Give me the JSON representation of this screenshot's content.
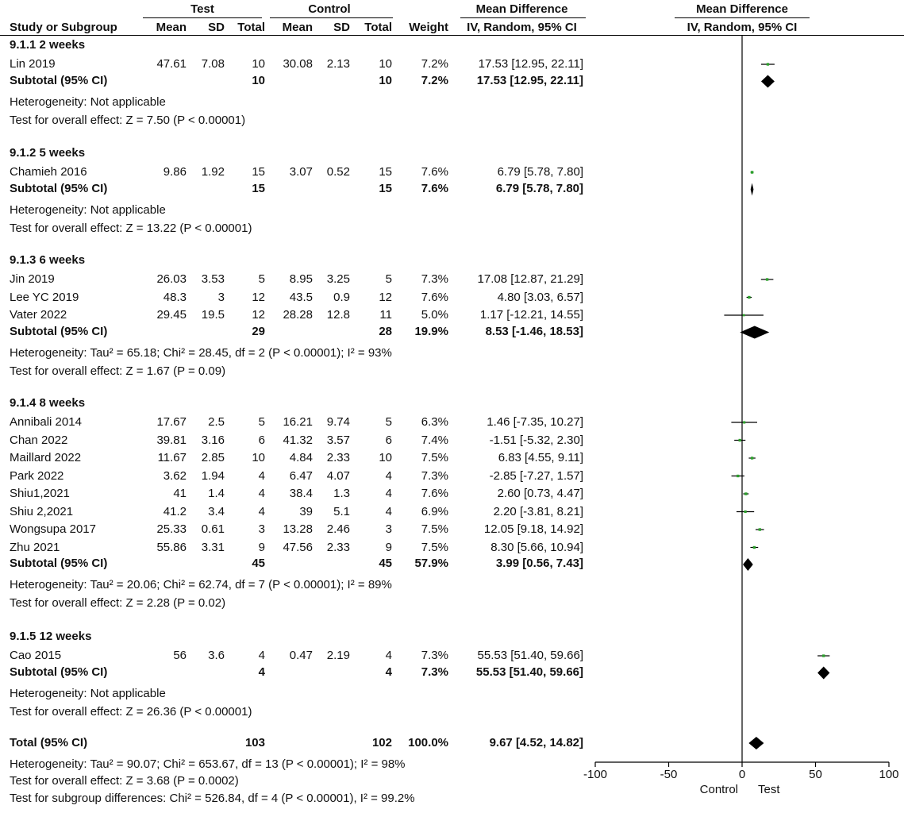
{
  "headers": {
    "test_group": "Test",
    "control_group": "Control",
    "md_left": "Mean Difference",
    "md_right": "Mean Difference",
    "study": "Study or Subgroup",
    "mean": "Mean",
    "sd": "SD",
    "total": "Total",
    "weight": "Weight",
    "method_left": "IV, Random, 95% CI",
    "method_right": "IV, Random, 95% CI"
  },
  "subgroups": [
    {
      "title": "9.1.1 2 weeks",
      "studies": [
        {
          "name": "Lin 2019",
          "t_mean": "47.61",
          "t_sd": "7.08",
          "t_n": "10",
          "c_mean": "30.08",
          "c_sd": "2.13",
          "c_n": "10",
          "weight": "7.2%",
          "ci": "17.53 [12.95, 22.11]"
        }
      ],
      "subtotal": {
        "label": "Subtotal (95% CI)",
        "t_n": "10",
        "c_n": "10",
        "weight": "7.2%",
        "ci": "17.53 [12.95, 22.11]"
      },
      "heterogeneity": "Heterogeneity: Not applicable",
      "overall": "Test for overall effect: Z = 7.50 (P < 0.00001)"
    },
    {
      "title": "9.1.2 5 weeks",
      "studies": [
        {
          "name": "Chamieh 2016",
          "t_mean": "9.86",
          "t_sd": "1.92",
          "t_n": "15",
          "c_mean": "3.07",
          "c_sd": "0.52",
          "c_n": "15",
          "weight": "7.6%",
          "ci": "6.79 [5.78, 7.80]"
        }
      ],
      "subtotal": {
        "label": "Subtotal (95% CI)",
        "t_n": "15",
        "c_n": "15",
        "weight": "7.6%",
        "ci": "6.79 [5.78, 7.80]"
      },
      "heterogeneity": "Heterogeneity: Not applicable",
      "overall": "Test for overall effect: Z = 13.22 (P < 0.00001)"
    },
    {
      "title": "9.1.3 6 weeks",
      "studies": [
        {
          "name": "Jin 2019",
          "t_mean": "26.03",
          "t_sd": "3.53",
          "t_n": "5",
          "c_mean": "8.95",
          "c_sd": "3.25",
          "c_n": "5",
          "weight": "7.3%",
          "ci": "17.08 [12.87, 21.29]"
        },
        {
          "name": "Lee YC 2019",
          "t_mean": "48.3",
          "t_sd": "3",
          "t_n": "12",
          "c_mean": "43.5",
          "c_sd": "0.9",
          "c_n": "12",
          "weight": "7.6%",
          "ci": "4.80 [3.03, 6.57]"
        },
        {
          "name": "Vater 2022",
          "t_mean": "29.45",
          "t_sd": "19.5",
          "t_n": "12",
          "c_mean": "28.28",
          "c_sd": "12.8",
          "c_n": "11",
          "weight": "5.0%",
          "ci": "1.17 [-12.21, 14.55]"
        }
      ],
      "subtotal": {
        "label": "Subtotal (95% CI)",
        "t_n": "29",
        "c_n": "28",
        "weight": "19.9%",
        "ci": "8.53 [-1.46, 18.53]"
      },
      "heterogeneity": "Heterogeneity: Tau² = 65.18; Chi² = 28.45, df = 2 (P < 0.00001); I² = 93%",
      "overall": "Test for overall effect: Z = 1.67 (P = 0.09)"
    },
    {
      "title": "9.1.4 8 weeks",
      "studies": [
        {
          "name": "Annibali 2014",
          "t_mean": "17.67",
          "t_sd": "2.5",
          "t_n": "5",
          "c_mean": "16.21",
          "c_sd": "9.74",
          "c_n": "5",
          "weight": "6.3%",
          "ci": "1.46 [-7.35, 10.27]"
        },
        {
          "name": "Chan 2022",
          "t_mean": "39.81",
          "t_sd": "3.16",
          "t_n": "6",
          "c_mean": "41.32",
          "c_sd": "3.57",
          "c_n": "6",
          "weight": "7.4%",
          "ci": "-1.51 [-5.32, 2.30]"
        },
        {
          "name": "Maillard 2022",
          "t_mean": "11.67",
          "t_sd": "2.85",
          "t_n": "10",
          "c_mean": "4.84",
          "c_sd": "2.33",
          "c_n": "10",
          "weight": "7.5%",
          "ci": "6.83 [4.55, 9.11]"
        },
        {
          "name": "Park 2022",
          "t_mean": "3.62",
          "t_sd": "1.94",
          "t_n": "4",
          "c_mean": "6.47",
          "c_sd": "4.07",
          "c_n": "4",
          "weight": "7.3%",
          "ci": "-2.85 [-7.27, 1.57]"
        },
        {
          "name": "Shiu1,2021",
          "t_mean": "41",
          "t_sd": "1.4",
          "t_n": "4",
          "c_mean": "38.4",
          "c_sd": "1.3",
          "c_n": "4",
          "weight": "7.6%",
          "ci": "2.60 [0.73, 4.47]"
        },
        {
          "name": "Shiu 2,2021",
          "t_mean": "41.2",
          "t_sd": "3.4",
          "t_n": "4",
          "c_mean": "39",
          "c_sd": "5.1",
          "c_n": "4",
          "weight": "6.9%",
          "ci": "2.20 [-3.81, 8.21]"
        },
        {
          "name": "Wongsupa 2017",
          "t_mean": "25.33",
          "t_sd": "0.61",
          "t_n": "3",
          "c_mean": "13.28",
          "c_sd": "2.46",
          "c_n": "3",
          "weight": "7.5%",
          "ci": "12.05 [9.18, 14.92]"
        },
        {
          "name": "Zhu 2021",
          "t_mean": "55.86",
          "t_sd": "3.31",
          "t_n": "9",
          "c_mean": "47.56",
          "c_sd": "2.33",
          "c_n": "9",
          "weight": "7.5%",
          "ci": "8.30 [5.66, 10.94]"
        }
      ],
      "subtotal": {
        "label": "Subtotal (95% CI)",
        "t_n": "45",
        "c_n": "45",
        "weight": "57.9%",
        "ci": "3.99 [0.56, 7.43]"
      },
      "heterogeneity": "Heterogeneity: Tau² = 20.06; Chi² = 62.74, df = 7 (P < 0.00001); I² = 89%",
      "overall": "Test for overall effect: Z = 2.28 (P = 0.02)"
    },
    {
      "title": "9.1.5 12 weeks",
      "studies": [
        {
          "name": "Cao 2015",
          "t_mean": "56",
          "t_sd": "3.6",
          "t_n": "4",
          "c_mean": "0.47",
          "c_sd": "2.19",
          "c_n": "4",
          "weight": "7.3%",
          "ci": "55.53 [51.40, 59.66]"
        }
      ],
      "subtotal": {
        "label": "Subtotal (95% CI)",
        "t_n": "4",
        "c_n": "4",
        "weight": "7.3%",
        "ci": "55.53 [51.40, 59.66]"
      },
      "heterogeneity": "Heterogeneity: Not applicable",
      "overall": "Test for overall effect: Z = 26.36 (P < 0.00001)"
    }
  ],
  "total": {
    "label": "Total (95% CI)",
    "t_n": "103",
    "c_n": "102",
    "weight": "100.0%",
    "ci": "9.67 [4.52, 14.82]"
  },
  "footer": {
    "heterogeneity": "Heterogeneity: Tau² = 90.07; Chi² = 653.67, df = 13 (P < 0.00001); I² = 98%",
    "overall": "Test for overall effect: Z = 3.68 (P = 0.0002)",
    "subgroup_diff": "Test for subgroup differences: Chi² = 526.84, df = 4 (P < 0.00001), I² = 99.2%"
  },
  "colors": {
    "study_marker": "#2ca02c",
    "diamond": "#000000",
    "line": "#000000"
  },
  "chart_data": {
    "type": "forest",
    "xlim": [
      -100,
      100
    ],
    "xticks": [
      -100,
      -50,
      0,
      50,
      100
    ],
    "xtick_labels": [
      "-100",
      "-50",
      "0",
      "50",
      "100"
    ],
    "favours_left": "Control",
    "favours_right": "Test",
    "rows": [
      {
        "kind": "study",
        "label": "Lin 2019",
        "est": 17.53,
        "lo": 12.95,
        "hi": 22.11,
        "weight": 7.2
      },
      {
        "kind": "subtotal",
        "label": "Subtotal 9.1.1",
        "est": 17.53,
        "lo": 12.95,
        "hi": 22.11
      },
      {
        "kind": "study",
        "label": "Chamieh 2016",
        "est": 6.79,
        "lo": 5.78,
        "hi": 7.8,
        "weight": 7.6
      },
      {
        "kind": "subtotal",
        "label": "Subtotal 9.1.2",
        "est": 6.79,
        "lo": 5.78,
        "hi": 7.8
      },
      {
        "kind": "study",
        "label": "Jin 2019",
        "est": 17.08,
        "lo": 12.87,
        "hi": 21.29,
        "weight": 7.3
      },
      {
        "kind": "study",
        "label": "Lee YC 2019",
        "est": 4.8,
        "lo": 3.03,
        "hi": 6.57,
        "weight": 7.6
      },
      {
        "kind": "study",
        "label": "Vater 2022",
        "est": 1.17,
        "lo": -12.21,
        "hi": 14.55,
        "weight": 5.0
      },
      {
        "kind": "subtotal",
        "label": "Subtotal 9.1.3",
        "est": 8.53,
        "lo": -1.46,
        "hi": 18.53
      },
      {
        "kind": "study",
        "label": "Annibali 2014",
        "est": 1.46,
        "lo": -7.35,
        "hi": 10.27,
        "weight": 6.3
      },
      {
        "kind": "study",
        "label": "Chan 2022",
        "est": -1.51,
        "lo": -5.32,
        "hi": 2.3,
        "weight": 7.4
      },
      {
        "kind": "study",
        "label": "Maillard 2022",
        "est": 6.83,
        "lo": 4.55,
        "hi": 9.11,
        "weight": 7.5
      },
      {
        "kind": "study",
        "label": "Park 2022",
        "est": -2.85,
        "lo": -7.27,
        "hi": 1.57,
        "weight": 7.3
      },
      {
        "kind": "study",
        "label": "Shiu1,2021",
        "est": 2.6,
        "lo": 0.73,
        "hi": 4.47,
        "weight": 7.6
      },
      {
        "kind": "study",
        "label": "Shiu 2,2021",
        "est": 2.2,
        "lo": -3.81,
        "hi": 8.21,
        "weight": 6.9
      },
      {
        "kind": "study",
        "label": "Wongsupa 2017",
        "est": 12.05,
        "lo": 9.18,
        "hi": 14.92,
        "weight": 7.5
      },
      {
        "kind": "study",
        "label": "Zhu 2021",
        "est": 8.3,
        "lo": 5.66,
        "hi": 10.94,
        "weight": 7.5
      },
      {
        "kind": "subtotal",
        "label": "Subtotal 9.1.4",
        "est": 3.99,
        "lo": 0.56,
        "hi": 7.43
      },
      {
        "kind": "study",
        "label": "Cao 2015",
        "est": 55.53,
        "lo": 51.4,
        "hi": 59.66,
        "weight": 7.3
      },
      {
        "kind": "subtotal",
        "label": "Subtotal 9.1.5",
        "est": 55.53,
        "lo": 51.4,
        "hi": 59.66
      },
      {
        "kind": "total",
        "label": "Total (95% CI)",
        "est": 9.67,
        "lo": 4.52,
        "hi": 14.82
      }
    ]
  }
}
